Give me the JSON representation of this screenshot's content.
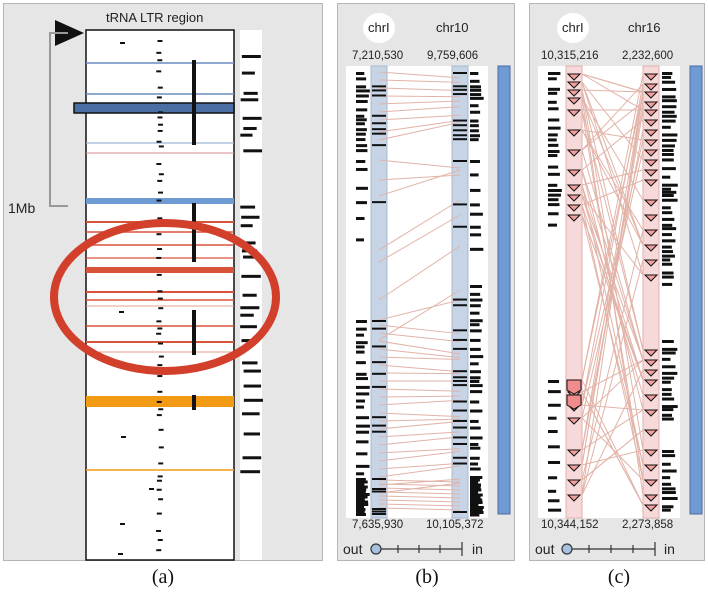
{
  "panel_a": {
    "header": "tRNA  LTR region",
    "scale": "1Mb",
    "caption": "(a)"
  },
  "panel_b": {
    "left_label": "chrI",
    "right_label": "chr10",
    "top_left": "7,210,530",
    "top_right": "9,759,606",
    "bottom_left": "7,635,930",
    "bottom_right": "10,105,372",
    "zoom_out": "out",
    "zoom_in": "in",
    "zoom_level": 0,
    "caption": "(b)"
  },
  "panel_c": {
    "left_label": "chrI",
    "right_label": "chr16",
    "top_left": "10,315,216",
    "top_right": "2,232,600",
    "bottom_left": "10,344,152",
    "bottom_right": "2,273,858",
    "zoom_out": "out",
    "zoom_in": "in",
    "zoom_level": 0,
    "caption": "(c)"
  },
  "colors": {
    "panel_bg": "#e6e6e6",
    "blue_track": "#c7d4e6",
    "pink_track": "#f7d9d9",
    "link": "#e2b3a8",
    "highlight_red": "#d9533a",
    "orange": "#f29a14",
    "blue_bar": "#6e9bd3",
    "circle_red": "#d2402c"
  }
}
